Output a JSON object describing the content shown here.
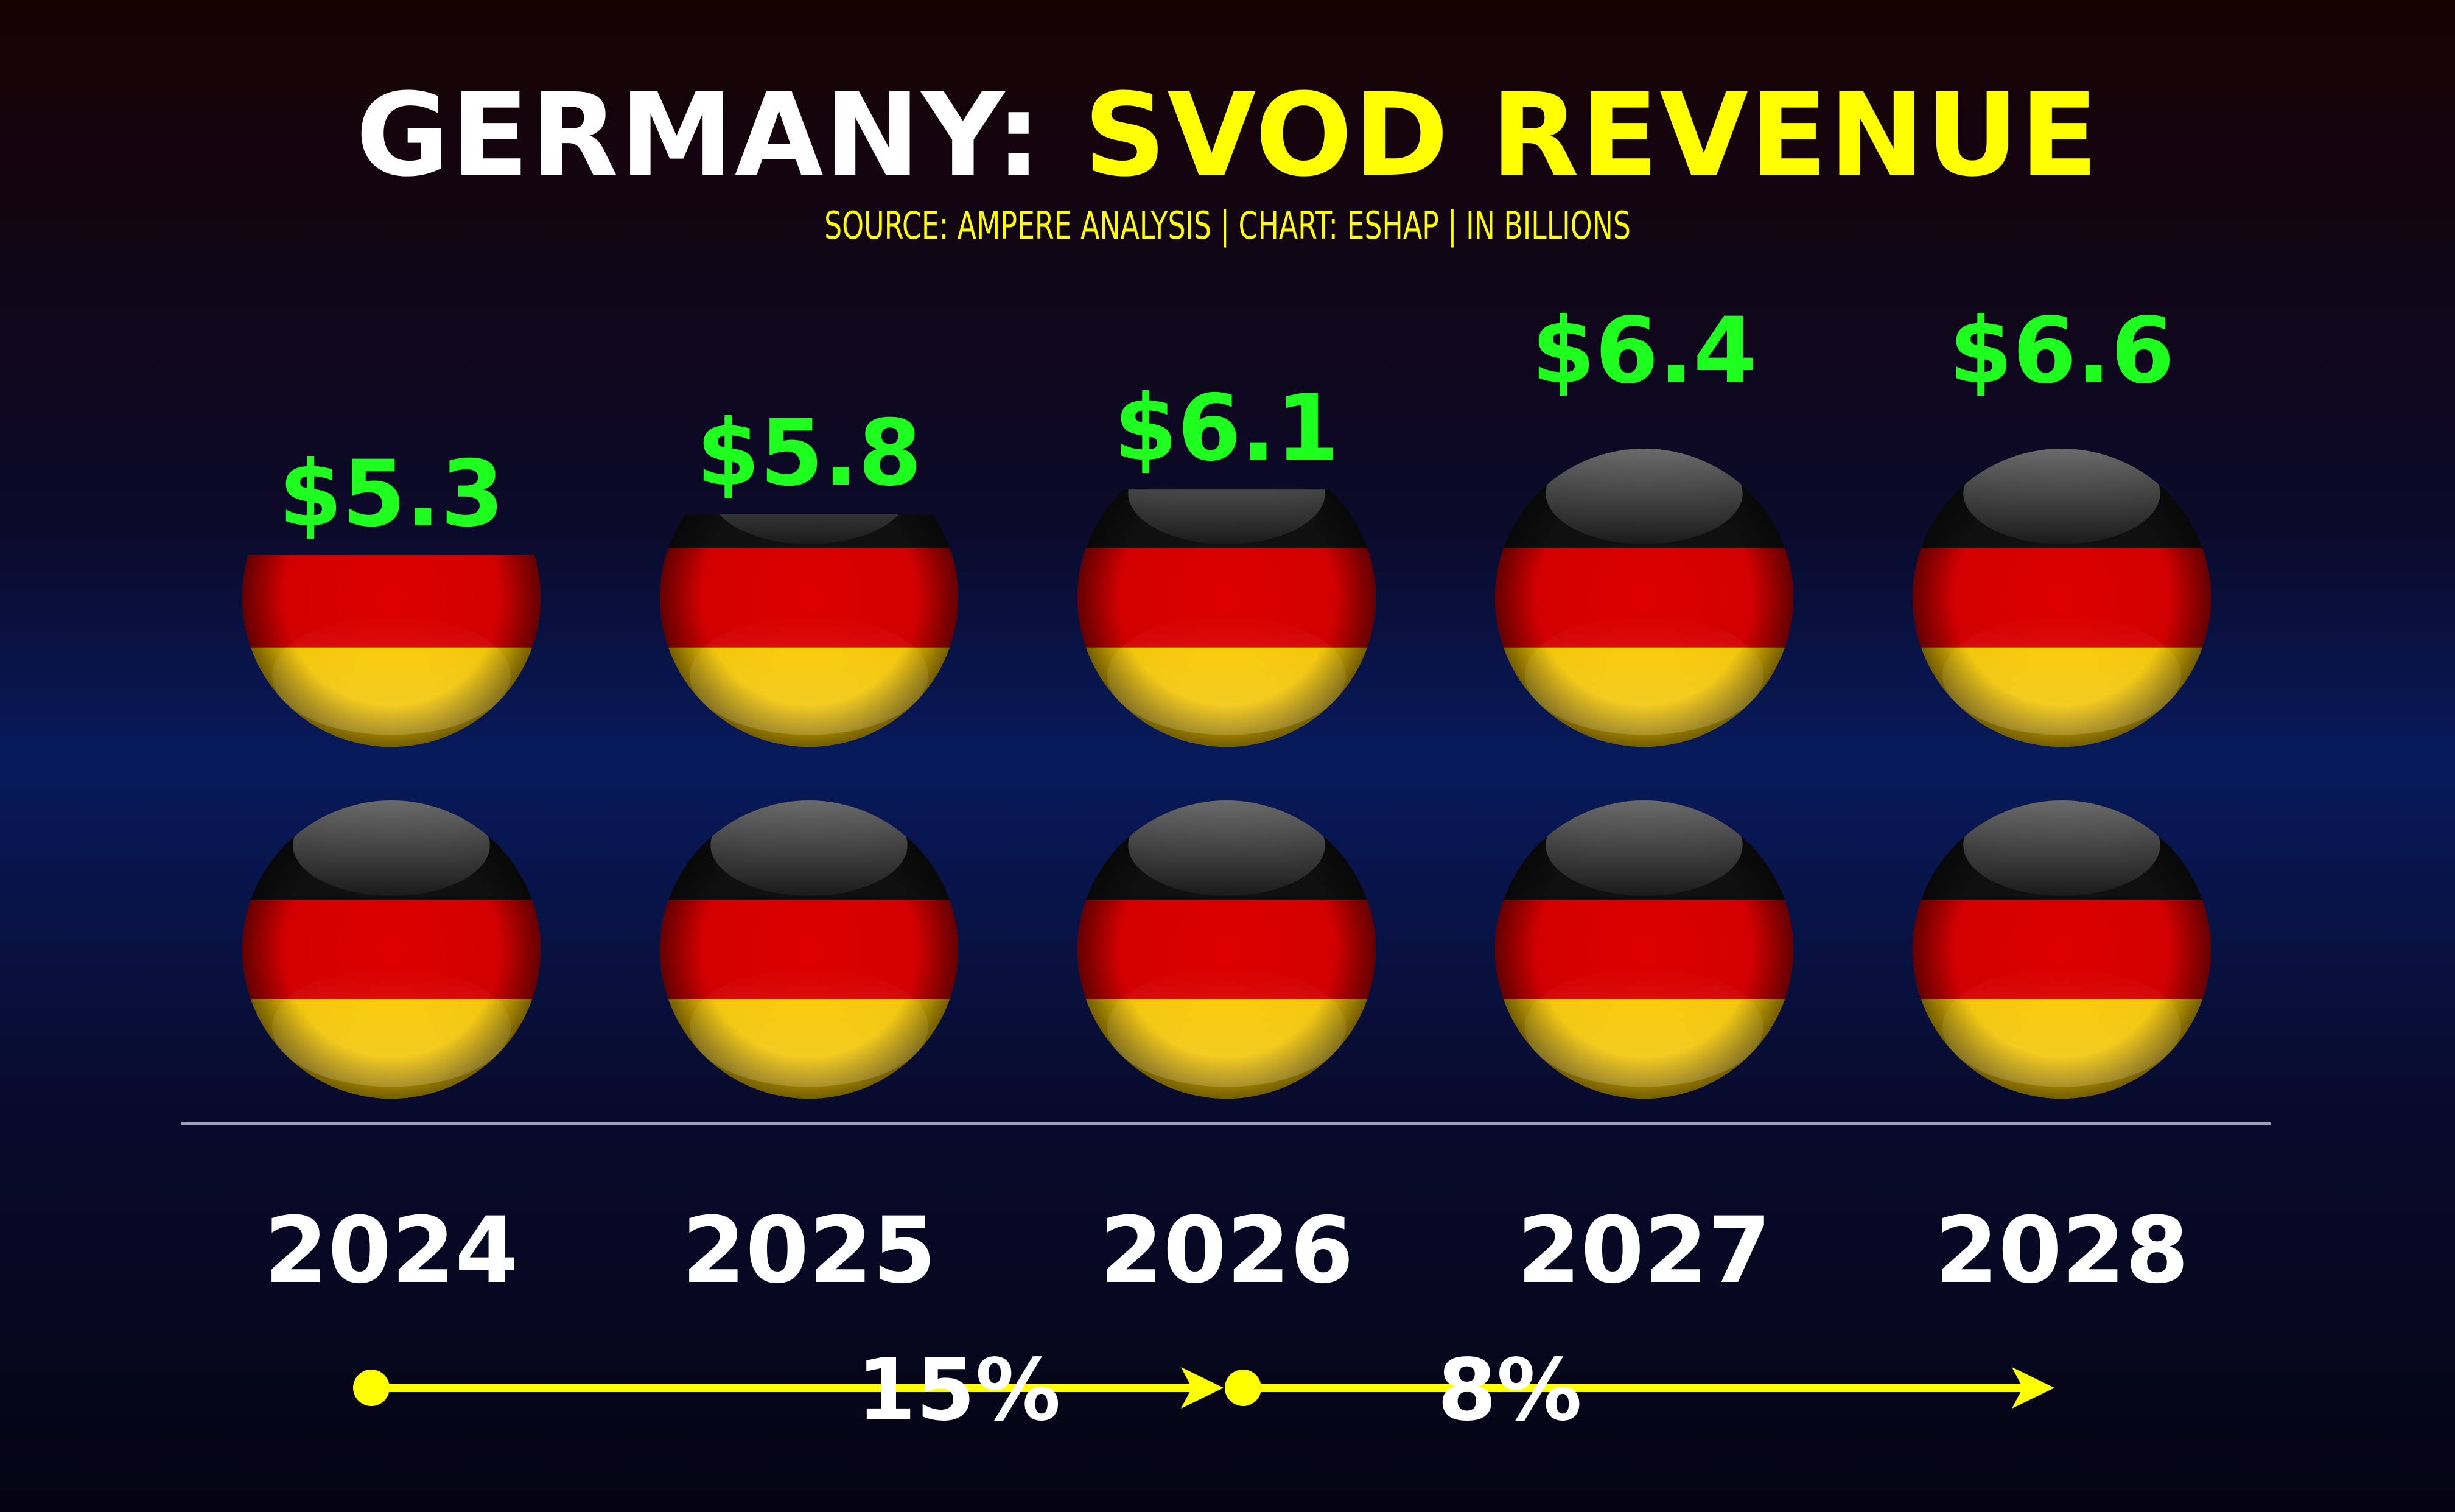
{
  "header": {
    "title_part1": "GERMANY:",
    "title_part2": "SVOD REVENUE",
    "subtitle": "SOURCE: AMPERE ANALYSIS | CHART: ESHAP | IN BILLIONS"
  },
  "colors": {
    "title": "#ffffff",
    "title_accent": "#ffff00",
    "value_label": "#1fff1f",
    "flag_black": "#111111",
    "flag_red": "#dd0000",
    "flag_gold": "#ffce00",
    "growth_arrow": "#ffff00"
  },
  "chart_data": {
    "type": "bar",
    "style": "pictograph stacked flag icons",
    "categories": [
      "2024",
      "2025",
      "2026",
      "2027",
      "2028"
    ],
    "values": [
      5.3,
      5.8,
      6.1,
      6.4,
      6.6
    ],
    "value_labels": [
      "$5.3",
      "$5.8",
      "$6.1",
      "$6.4",
      "$6.6"
    ],
    "icon": "germany-flag-sphere-icon",
    "icons_per_column": 2,
    "legend": "none",
    "grid": false,
    "growth_rates": [
      {
        "from": "2024",
        "to": "2026",
        "label": "15%"
      },
      {
        "from": "2026",
        "to": "2028",
        "label": "8%"
      }
    ]
  }
}
